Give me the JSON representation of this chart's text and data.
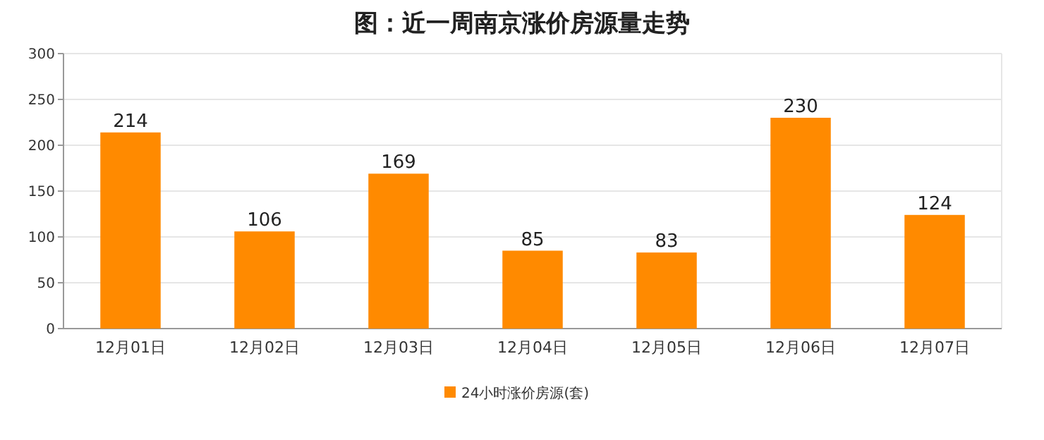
{
  "chart_data": {
    "type": "bar",
    "title": "图：近一周南京涨价房源量走势",
    "categories": [
      "12月01日",
      "12月02日",
      "12月03日",
      "12月04日",
      "12月05日",
      "12月06日",
      "12月07日"
    ],
    "series": [
      {
        "name": "24小时涨价房源(套)",
        "color": "#ff8a00",
        "values": [
          214,
          106,
          169,
          85,
          83,
          230,
          124
        ]
      }
    ],
    "ylim": [
      0,
      300
    ],
    "yticks": [
      0,
      50,
      100,
      150,
      200,
      250,
      300
    ],
    "grid": "y",
    "legend": "bottom",
    "data_labels": true
  }
}
